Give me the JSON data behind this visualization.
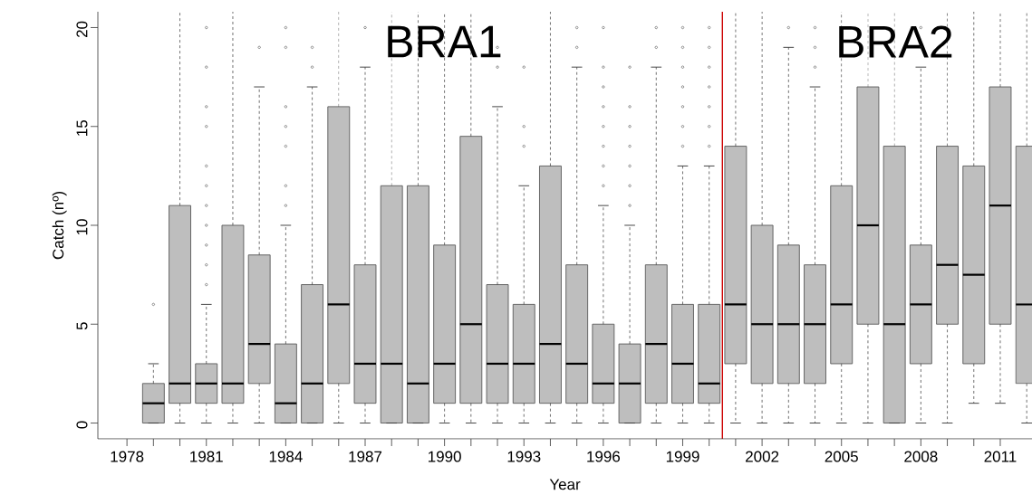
{
  "chart_data": {
    "type": "box",
    "xlabel": "Year",
    "ylabel": "Catch (nº)",
    "x": [
      1979,
      1980,
      1981,
      1982,
      1983,
      1984,
      1985,
      1986,
      1987,
      1988,
      1989,
      1990,
      1991,
      1992,
      1993,
      1994,
      1995,
      1996,
      1997,
      1998,
      1999,
      2000,
      2001,
      2002,
      2003,
      2004,
      2005,
      2006,
      2007,
      2008,
      2009,
      2010,
      2011,
      2012
    ],
    "series": [
      {
        "color": "#bebebe",
        "boxes": [
          {
            "low": 0,
            "q1": 0,
            "median": 1,
            "q3": 2,
            "high": 3,
            "outliers": [
              6
            ]
          },
          {
            "low": 0,
            "q1": 1,
            "median": 2,
            "q3": 11,
            "high": 20.8
          },
          {
            "low": 0,
            "q1": 1,
            "median": 2,
            "q3": 3,
            "high": 6,
            "outliers": [
              7,
              8,
              9,
              10,
              11,
              12,
              13,
              15,
              16,
              18,
              20
            ]
          },
          {
            "low": 0,
            "q1": 1,
            "median": 2,
            "q3": 10,
            "high": 20.8
          },
          {
            "low": 0,
            "q1": 2,
            "median": 4,
            "q3": 8.5,
            "high": 17,
            "outliers": [
              19
            ]
          },
          {
            "low": 0,
            "q1": 0,
            "median": 1,
            "q3": 4,
            "high": 10,
            "outliers": [
              11,
              12,
              14,
              15,
              16,
              19,
              20
            ]
          },
          {
            "low": 0,
            "q1": 0,
            "median": 2,
            "q3": 7,
            "high": 17,
            "outliers": [
              18,
              19
            ]
          },
          {
            "low": 0,
            "q1": 2,
            "median": 6,
            "q3": 16,
            "high": 20.8
          },
          {
            "low": 0,
            "q1": 1,
            "median": 3,
            "q3": 8,
            "high": 18,
            "outliers": [
              20
            ]
          },
          {
            "low": 0,
            "q1": 0,
            "median": 3,
            "q3": 12,
            "high": 20.8
          },
          {
            "low": 0,
            "q1": 0,
            "median": 2,
            "q3": 12,
            "high": 20.8
          },
          {
            "low": 0,
            "q1": 1,
            "median": 3,
            "q3": 9,
            "high": 20.8
          },
          {
            "low": 0,
            "q1": 1,
            "median": 5,
            "q3": 14.5,
            "high": 20.8
          },
          {
            "low": 0,
            "q1": 1,
            "median": 3,
            "q3": 7,
            "high": 16,
            "outliers": [
              18,
              19
            ]
          },
          {
            "low": 0,
            "q1": 1,
            "median": 3,
            "q3": 6,
            "high": 12,
            "outliers": [
              14,
              15,
              18
            ]
          },
          {
            "low": 0,
            "q1": 1,
            "median": 4,
            "q3": 13,
            "high": 20.8
          },
          {
            "low": 0,
            "q1": 1,
            "median": 3,
            "q3": 8,
            "high": 18,
            "outliers": [
              19,
              20
            ]
          },
          {
            "low": 0,
            "q1": 1,
            "median": 2,
            "q3": 5,
            "high": 11,
            "outliers": [
              12,
              13,
              14,
              15,
              16,
              17,
              18,
              20
            ]
          },
          {
            "low": 0,
            "q1": 0,
            "median": 2,
            "q3": 4,
            "high": 10,
            "outliers": [
              11,
              12,
              13,
              14,
              15,
              16,
              18
            ]
          },
          {
            "low": 0,
            "q1": 1,
            "median": 4,
            "q3": 8,
            "high": 18,
            "outliers": [
              19,
              20
            ]
          },
          {
            "low": 0,
            "q1": 1,
            "median": 3,
            "q3": 6,
            "high": 13,
            "outliers": [
              14,
              15,
              16,
              17,
              18,
              19,
              20
            ]
          },
          {
            "low": 0,
            "q1": 1,
            "median": 2,
            "q3": 6,
            "high": 13,
            "outliers": [
              14,
              15,
              16,
              17,
              18,
              19,
              20
            ]
          },
          {
            "low": 0,
            "q1": 3,
            "median": 6,
            "q3": 14,
            "high": 20.8
          },
          {
            "low": 0,
            "q1": 2,
            "median": 5,
            "q3": 10,
            "high": 20.8
          },
          {
            "low": 0,
            "q1": 2,
            "median": 5,
            "q3": 9,
            "high": 19,
            "outliers": [
              20
            ]
          },
          {
            "low": 0,
            "q1": 2,
            "median": 5,
            "q3": 8,
            "high": 17,
            "outliers": [
              18,
              19,
              20
            ]
          },
          {
            "low": 0,
            "q1": 3,
            "median": 6,
            "q3": 12,
            "high": 20.8
          },
          {
            "low": 0,
            "q1": 5,
            "median": 10,
            "q3": 17,
            "high": 20.8
          },
          {
            "low": 0,
            "q1": 0,
            "median": 5,
            "q3": 14,
            "high": 20.8
          },
          {
            "low": 0,
            "q1": 3,
            "median": 6,
            "q3": 9,
            "high": 18,
            "outliers": [
              19,
              20
            ]
          },
          {
            "low": 0,
            "q1": 5,
            "median": 8,
            "q3": 14,
            "high": 20.8
          },
          {
            "low": 1,
            "q1": 3,
            "median": 7.5,
            "q3": 13,
            "high": 20.8
          },
          {
            "low": 1,
            "q1": 5,
            "median": 11,
            "q3": 17,
            "high": 20.8
          },
          {
            "low": 0,
            "q1": 2,
            "median": 6,
            "q3": 14,
            "high": 20.8
          }
        ]
      }
    ],
    "xlim": [
      1976.9,
      2012.2
    ],
    "ylim": [
      -0.8,
      20.8
    ],
    "xticks": [
      1978,
      {
        "value": 1979,
        "label": null
      },
      {
        "value": 1980,
        "label": null
      },
      1981,
      {
        "value": 1982,
        "label": null
      },
      {
        "value": 1983,
        "label": null
      },
      1984,
      {
        "value": 1985,
        "label": null
      },
      {
        "value": 1986,
        "label": null
      },
      1987,
      {
        "value": 1988,
        "label": null
      },
      {
        "value": 1989,
        "label": null
      },
      1990,
      {
        "value": 1991,
        "label": null
      },
      {
        "value": 1992,
        "label": null
      },
      1993,
      {
        "value": 1994,
        "label": null
      },
      {
        "value": 1995,
        "label": null
      },
      1996,
      {
        "value": 1997,
        "label": null
      },
      {
        "value": 1998,
        "label": null
      },
      1999,
      {
        "value": 2000,
        "label": null
      },
      {
        "value": 2001,
        "label": null
      },
      2002,
      {
        "value": 2003,
        "label": null
      },
      {
        "value": 2004,
        "label": null
      },
      2005,
      {
        "value": 2006,
        "label": null
      },
      {
        "value": 2007,
        "label": null
      },
      2008,
      {
        "value": 2009,
        "label": null
      },
      {
        "value": 2010,
        "label": null
      },
      2011
    ],
    "yticks": [
      0,
      5,
      10,
      15,
      20
    ],
    "ref_lines": [
      {
        "axis": "x",
        "value": 2000.5,
        "color": "#cc0000"
      }
    ],
    "annotations": [
      "BRA1",
      "BRA2"
    ]
  }
}
